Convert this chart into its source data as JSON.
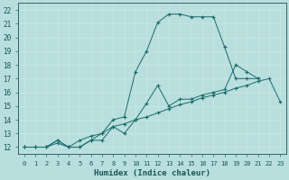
{
  "xlabel": "Humidex (Indice chaleur)",
  "background_color": "#b8dede",
  "grid_color": "#a0cccc",
  "line_color": "#1a6b6b",
  "xlim": [
    -0.5,
    23.5
  ],
  "ylim": [
    11.5,
    22.5
  ],
  "xticks": [
    0,
    1,
    2,
    3,
    4,
    5,
    6,
    7,
    8,
    9,
    10,
    11,
    12,
    13,
    14,
    15,
    16,
    17,
    18,
    19,
    20,
    21,
    22,
    23
  ],
  "yticks": [
    12,
    13,
    14,
    15,
    16,
    17,
    18,
    19,
    20,
    21,
    22
  ],
  "line1_x": [
    0,
    1,
    2,
    3,
    4,
    5,
    6,
    7,
    8,
    9,
    10,
    11,
    12,
    13,
    14,
    15,
    16,
    17,
    18,
    19,
    20,
    21
  ],
  "line1_y": [
    12,
    12,
    12,
    12.5,
    12,
    12,
    12.5,
    13,
    14,
    14.2,
    17.5,
    19,
    21.1,
    21.7,
    21.7,
    21.5,
    21.5,
    21.5,
    19.3,
    17.0,
    17.0,
    17.0
  ],
  "line2_x": [
    0,
    1,
    2,
    3,
    4,
    5,
    6,
    7,
    8,
    9,
    10,
    11,
    12,
    13,
    14,
    15,
    16,
    17,
    18,
    19,
    20,
    21,
    22,
    23
  ],
  "line2_y": [
    12,
    12,
    12,
    12.5,
    12,
    12,
    12.5,
    12.5,
    13.5,
    13.0,
    14.0,
    15.2,
    16.5,
    15.0,
    15.5,
    15.5,
    15.8,
    16.0,
    16.2,
    18.0,
    17.5,
    17.0,
    null,
    null
  ],
  "line3_x": [
    0,
    1,
    2,
    3,
    4,
    5,
    6,
    7,
    8,
    9,
    10,
    11,
    12,
    13,
    14,
    15,
    16,
    17,
    18,
    19,
    20,
    21,
    22,
    23
  ],
  "line3_y": [
    12,
    12,
    12,
    12.3,
    12,
    12.5,
    12.8,
    13.0,
    13.5,
    13.7,
    14.0,
    14.2,
    14.5,
    14.8,
    15.1,
    15.3,
    15.6,
    15.8,
    16.0,
    16.3,
    16.5,
    16.8,
    17.0,
    15.3
  ]
}
